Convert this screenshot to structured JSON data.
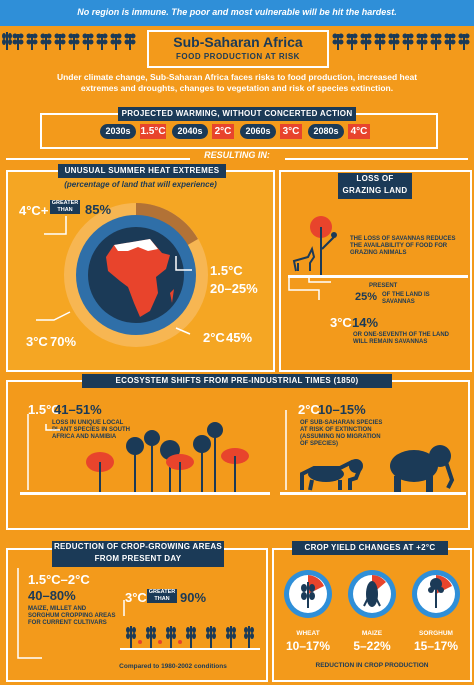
{
  "banner": "No region is immune.  The poor and most vulnerable will be hit the hardest.",
  "header": {
    "title": "Sub-Saharan Africa",
    "subtitle": "Food production at risk"
  },
  "intro": "Under climate change, Sub-Saharan Africa faces risks to food production, increased heat extremes and droughts, changes to vegetation and risk of species extinction.",
  "warming": {
    "title": "Projected warming, without concerted action",
    "periods": [
      {
        "decade": "2030s",
        "temp": "1.5°C"
      },
      {
        "decade": "2040s",
        "temp": "2°C"
      },
      {
        "decade": "2060s",
        "temp": "3°C"
      },
      {
        "decade": "2080s",
        "temp": "4°C"
      }
    ]
  },
  "resulting": "Resulting in:",
  "heat": {
    "title": "Unusual summer heat extremes",
    "subtitle": "(percentage of land that will experience)",
    "top_temp": "4°C+",
    "greater_than": "Greater than",
    "top_value": "85%",
    "right_temp": "1.5°C",
    "right_value": "20–25%",
    "bl_temp": "3°C",
    "bl_value": "70%",
    "br_temp": "2°C",
    "br_value": "45%"
  },
  "grazing": {
    "title": "Loss of grazing land",
    "description": "The loss of savannas reduces the availability of food for grazing animals",
    "present_label": "Present",
    "present_value": "25%",
    "present_text": "of the land is savannas",
    "temp": "3°C",
    "value": "14%",
    "text": "or one-seventh of the land will remain savannas"
  },
  "ecosystem": {
    "title": "Ecosystem shifts from pre-industrial times (1850)",
    "left_temp": "1.5°C",
    "left_value": "41–51%",
    "left_text": "Loss in unique local plant species in South Africa and Namibia",
    "right_temp": "2°C",
    "right_value": "10–15%",
    "right_text": "of sub-Saharan species at risk of extinction (assuming no migration of species)"
  },
  "crop_area": {
    "title": "Reduction of crop-growing areas from present day",
    "temp": "1.5°C–2°C",
    "value": "40–80%",
    "text": "Maize, millet and sorghum cropping areas for current cultivars",
    "temp2": "3°C",
    "greater_than": "Greater than",
    "value2": "90%",
    "footnote": "Compared to 1980-2002 conditions"
  },
  "crop_yield": {
    "title": "Crop yield changes at +2°C",
    "crops": [
      {
        "name": "Wheat",
        "value": "10–17%"
      },
      {
        "name": "Maize",
        "value": "5–22%"
      },
      {
        "name": "Sorghum",
        "value": "15–17%"
      }
    ],
    "footer": "Reduction in crop production"
  },
  "colors": {
    "orange": "#f39a1b",
    "navy": "#1b3a57",
    "red": "#e8442c",
    "blue": "#2f6fa8"
  }
}
